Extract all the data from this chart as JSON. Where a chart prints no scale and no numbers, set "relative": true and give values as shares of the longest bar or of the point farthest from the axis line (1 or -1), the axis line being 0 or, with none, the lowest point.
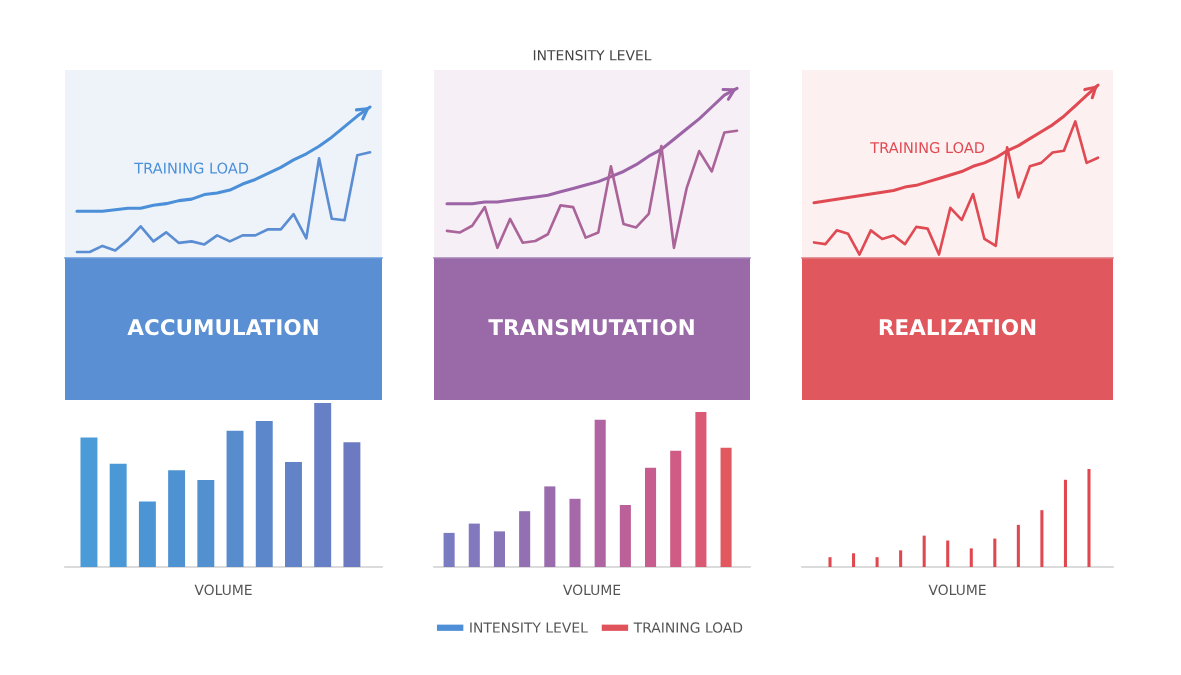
{
  "chart_data": [
    {
      "type": "line",
      "relative": true,
      "categories": [
        null,
        null,
        null,
        null,
        null,
        null,
        null,
        null,
        null,
        null,
        null,
        null,
        null,
        null,
        null,
        null,
        null,
        null,
        null,
        null,
        null,
        null,
        null,
        null
      ],
      "series": [
        {
          "name": "TRAINING LOAD",
          "color": "#4a8fd8",
          "values": [
            0.31,
            0.31,
            0.31,
            0.32,
            0.33,
            0.33,
            0.35,
            0.36,
            0.38,
            0.39,
            0.42,
            0.43,
            0.45,
            0.49,
            0.52,
            0.56,
            0.6,
            0.65,
            0.69,
            0.74,
            0.8,
            0.87,
            0.94,
            1
          ]
        },
        {
          "color": "#5a8dd2",
          "values": [
            0.04,
            0.04,
            0.08,
            0.05,
            0.12,
            0.21,
            0.11,
            0.17,
            0.1,
            0.11,
            0.09,
            0.15,
            0.11,
            0.15,
            0.15,
            0.19,
            0.19,
            0.29,
            0.13,
            0.66,
            0.26,
            0.25,
            0.68,
            0.7
          ]
        }
      ]
    },
    {
      "type": "line",
      "relative": true,
      "title": "INTENSITY LEVEL",
      "categories": [
        null,
        null,
        null,
        null,
        null,
        null,
        null,
        null,
        null,
        null,
        null,
        null,
        null,
        null,
        null,
        null,
        null,
        null,
        null,
        null,
        null,
        null,
        null,
        null
      ],
      "series": [
        {
          "color": "#9c64a6",
          "values": [
            0.32,
            0.32,
            0.32,
            0.33,
            0.33,
            0.34,
            0.35,
            0.36,
            0.37,
            0.39,
            0.41,
            0.43,
            0.45,
            0.48,
            0.51,
            0.55,
            0.6,
            0.64,
            0.7,
            0.76,
            0.82,
            0.89,
            0.96,
            1
          ]
        },
        {
          "color": "#aa6499",
          "values": [
            0.16,
            0.15,
            0.19,
            0.3,
            0.06,
            0.23,
            0.09,
            0.1,
            0.14,
            0.31,
            0.3,
            0.12,
            0.15,
            0.54,
            0.2,
            0.18,
            0.26,
            0.66,
            0.06,
            0.41,
            0.63,
            0.51,
            0.74,
            0.75
          ]
        }
      ]
    },
    {
      "type": "line",
      "relative": true,
      "categories": [
        null,
        null,
        null,
        null,
        null,
        null,
        null,
        null,
        null,
        null,
        null,
        null,
        null,
        null,
        null,
        null,
        null,
        null,
        null,
        null,
        null,
        null,
        null,
        null,
        null,
        null
      ],
      "series": [
        {
          "name": "TRAINING LOAD",
          "color": "#e04a52",
          "values": [
            0.32,
            0.33,
            0.34,
            0.35,
            0.36,
            0.37,
            0.38,
            0.39,
            0.41,
            0.42,
            0.44,
            0.46,
            0.48,
            0.5,
            0.53,
            0.55,
            0.58,
            0.62,
            0.65,
            0.69,
            0.73,
            0.77,
            0.82,
            0.88,
            0.94,
            1
          ]
        },
        {
          "color": "#e04a52",
          "values": [
            0.09,
            0.08,
            0.16,
            0.14,
            0.02,
            0.16,
            0.11,
            0.13,
            0.08,
            0.18,
            0.17,
            0.02,
            0.29,
            0.22,
            0.37,
            0.11,
            0.07,
            0.64,
            0.35,
            0.53,
            0.55,
            0.61,
            0.62,
            0.79,
            0.55,
            0.58
          ]
        }
      ]
    },
    {
      "type": "bar",
      "relative": true,
      "title": "ACCUMULATION",
      "xlabel": "VOLUME",
      "categories": [
        null,
        null,
        null,
        null,
        null,
        null,
        null,
        null,
        null,
        null
      ],
      "values": [
        0.79,
        0.63,
        0.4,
        0.59,
        0.53,
        0.83,
        0.89,
        0.64,
        1,
        0.76
      ],
      "colors": [
        "#4a9bd8",
        "#4b98d6",
        "#4c95d4",
        "#4f92d2",
        "#5290d0",
        "#578ccd",
        "#5c88cb",
        "#6283c7",
        "#677fc4",
        "#6c7bc1"
      ]
    },
    {
      "type": "bar",
      "relative": true,
      "title": "TRANSMUTATION",
      "xlabel": "VOLUME",
      "categories": [
        null,
        null,
        null,
        null,
        null,
        null,
        null,
        null,
        null,
        null,
        null,
        null
      ],
      "values": [
        0.22,
        0.28,
        0.23,
        0.36,
        0.52,
        0.44,
        0.95,
        0.4,
        0.64,
        0.75,
        1,
        0.77
      ],
      "colors": [
        "#7a7cc1",
        "#8178bd",
        "#8875b8",
        "#9270b2",
        "#9a6cad",
        "#a568a8",
        "#b064a2",
        "#bc609a",
        "#c75d8f",
        "#d05b84",
        "#da5a76",
        "#e2585f"
      ]
    },
    {
      "type": "bar",
      "relative": true,
      "title": "REALIZATION",
      "xlabel": "VOLUME",
      "categories": [
        null,
        null,
        null,
        null,
        null,
        null,
        null,
        null,
        null,
        null,
        null,
        null
      ],
      "values": [
        0.1,
        0.14,
        0.1,
        0.17,
        0.32,
        0.27,
        0.19,
        0.29,
        0.43,
        0.58,
        0.89,
        1
      ],
      "color": "#e0474f"
    },
    {
      "type": "other",
      "legend": "bottom",
      "series": [
        {
          "name": "INTENSITY LEVEL",
          "color": "#4f8fd8"
        },
        {
          "name": "TRAINING LOAD",
          "color": "#e0535b"
        }
      ]
    }
  ]
}
